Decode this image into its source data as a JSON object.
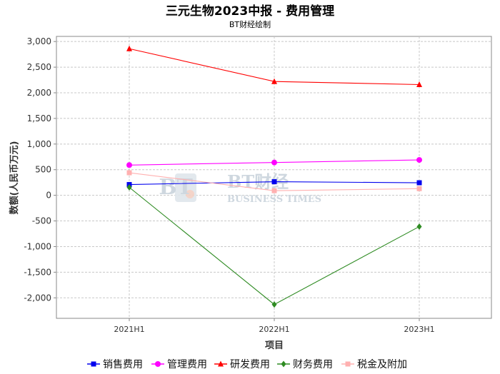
{
  "chart_data": {
    "type": "line",
    "title": "三元生物2023中报 - 费用管理",
    "subtitle": "BT财经绘制",
    "xlabel": "项目",
    "ylabel": "数额(人民币万元)",
    "categories": [
      "2021H1",
      "2022H1",
      "2023H1"
    ],
    "ylim": [
      -2400,
      3100
    ],
    "yticks": [
      3000,
      2500,
      2000,
      1500,
      1000,
      500,
      0,
      -500,
      -1000,
      -1500,
      -2000
    ],
    "ytick_labels": [
      "3,000",
      "2,500",
      "2,000",
      "1,500",
      "1,000",
      "500",
      "0",
      "-500",
      "-1,000",
      "-1,500",
      "-2,000"
    ],
    "grid": true,
    "legend_position": "bottom",
    "series": [
      {
        "name": "销售费用",
        "color": "#0000ee",
        "marker": "square",
        "values": [
          210,
          265,
          245
        ]
      },
      {
        "name": "管理费用",
        "color": "#ff00ff",
        "marker": "circle",
        "values": [
          590,
          640,
          690
        ]
      },
      {
        "name": "研发费用",
        "color": "#ff0000",
        "marker": "triangle",
        "values": [
          2860,
          2220,
          2160
        ]
      },
      {
        "name": "财务费用",
        "color": "#2e8b22",
        "marker": "diamond",
        "values": [
          155,
          -2130,
          -610
        ]
      },
      {
        "name": "税金及附加",
        "color": "#ffb0b0",
        "marker": "square",
        "values": [
          440,
          90,
          130
        ]
      }
    ]
  },
  "watermark": {
    "logo": "BT",
    "line1": "BT财经",
    "line2": "BUSINESS TIMES"
  }
}
